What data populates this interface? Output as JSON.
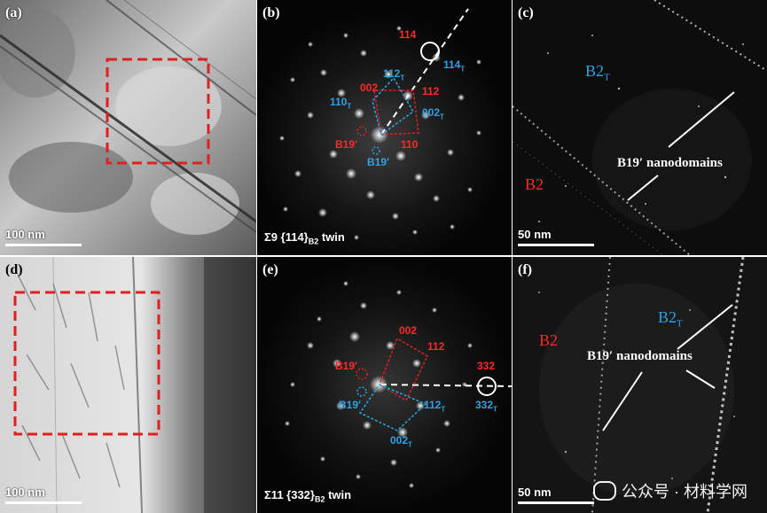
{
  "figure": {
    "panels": {
      "a": {
        "label": "(a)",
        "scale": "100 nm"
      },
      "b": {
        "label": "(b)",
        "caption_pre": "Σ9  {114}",
        "caption_sub": "B2",
        "caption_post": " twin",
        "indices_red": {
          "i114": "114",
          "i002": "002",
          "i112": "112",
          "i110": "110",
          "b19": "B19′"
        },
        "indices_blue": {
          "i112": "112",
          "i112_sub": "T",
          "i114": "114",
          "i114_sub": "T",
          "i110": "110",
          "i110_sub": "T",
          "i002": "002",
          "i002_sub": "T",
          "b19": "B19′"
        }
      },
      "c": {
        "label": "(c)",
        "scale": "50 nm",
        "b2t_main": "B2",
        "b2t_sub": "T",
        "b2": "B2",
        "nano": "B19′ nanodomains"
      },
      "d": {
        "label": "(d)",
        "scale": "100 nm"
      },
      "e": {
        "label": "(e)",
        "caption_pre": "Σ11  {332}",
        "caption_sub": "B2",
        "caption_post": " twin",
        "indices_red": {
          "i002": "002",
          "i112": "112",
          "i332": "332",
          "b19": "B19′"
        },
        "indices_blue": {
          "i332": "332",
          "i332_sub": "T",
          "i112": "112",
          "i112_sub": "T",
          "i002": "002",
          "i002_sub": "T",
          "b19": "B19′"
        }
      },
      "f": {
        "label": "(f)",
        "scale": "50 nm",
        "b2": "B2",
        "b2t_main": "B2",
        "b2t_sub": "T",
        "nano": "B19′ nanodomains"
      }
    },
    "watermark": "公众号 · 材料学网",
    "colors": {
      "matrix_red": "#ff2a2a",
      "twin_blue": "#2fa2e6",
      "box_red": "#e02020"
    }
  }
}
